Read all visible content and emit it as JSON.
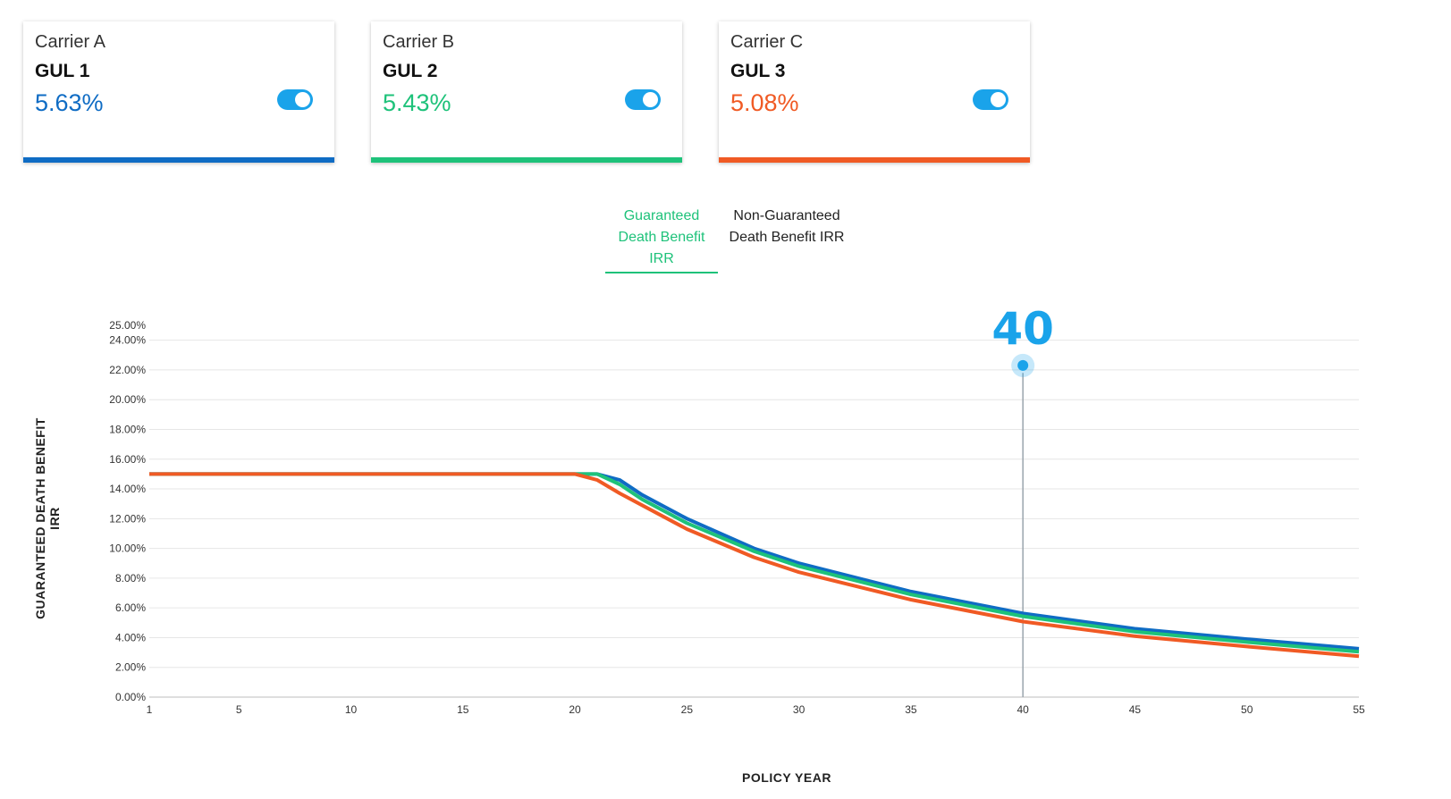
{
  "cards": [
    {
      "carrier": "Carrier A",
      "product": "GUL 1",
      "irr": "5.63%",
      "color": "#0f6cc4",
      "toggle_on": true
    },
    {
      "carrier": "Carrier B",
      "product": "GUL 2",
      "irr": "5.43%",
      "color": "#1ec27a",
      "toggle_on": true
    },
    {
      "carrier": "Carrier C",
      "product": "GUL 3",
      "irr": "5.08%",
      "color": "#f05a24",
      "toggle_on": true
    }
  ],
  "tabs": {
    "guaranteed": {
      "line1": "Guaranteed",
      "line2": "Death Benefit IRR"
    },
    "non_guaranteed": {
      "line1": "Non-Guaranteed",
      "line2": "Death Benefit IRR"
    }
  },
  "chart_data": {
    "type": "line",
    "xlabel": "POLICY YEAR",
    "ylabel": "GUARANTEED DEATH BENEFIT IRR",
    "xlim": [
      1,
      55
    ],
    "ylim": [
      0,
      25
    ],
    "x_ticks": [
      "1",
      "5",
      "10",
      "15",
      "20",
      "25",
      "30",
      "35",
      "40",
      "45",
      "50",
      "55"
    ],
    "y_ticks": [
      "0.00%",
      "2.00%",
      "4.00%",
      "6.00%",
      "8.00%",
      "10.00%",
      "12.00%",
      "14.00%",
      "16.00%",
      "18.00%",
      "20.00%",
      "22.00%",
      "24.00%",
      "25.00%"
    ],
    "y_tick_values": [
      0,
      2,
      4,
      6,
      8,
      10,
      12,
      14,
      16,
      18,
      20,
      22,
      24,
      25
    ],
    "grid": true,
    "legend": "none",
    "x": [
      1,
      20,
      21,
      22,
      23,
      25,
      28,
      30,
      35,
      40,
      45,
      50,
      55
    ],
    "series": [
      {
        "color": "#0f6cc4",
        "values": [
          15.0,
          15.0,
          15.0,
          14.6,
          13.6,
          12.0,
          10.0,
          9.0,
          7.1,
          5.63,
          4.6,
          3.9,
          3.25
        ]
      },
      {
        "color": "#1ec27a",
        "values": [
          15.0,
          15.0,
          15.0,
          14.3,
          13.3,
          11.7,
          9.8,
          8.8,
          6.9,
          5.43,
          4.4,
          3.7,
          3.05
        ]
      },
      {
        "color": "#f05a24",
        "values": [
          15.0,
          15.0,
          14.6,
          13.7,
          12.9,
          11.3,
          9.4,
          8.4,
          6.55,
          5.08,
          4.1,
          3.4,
          2.75
        ]
      }
    ],
    "marker": {
      "x": 40,
      "label": "40",
      "color": "#1aa3ea"
    }
  }
}
